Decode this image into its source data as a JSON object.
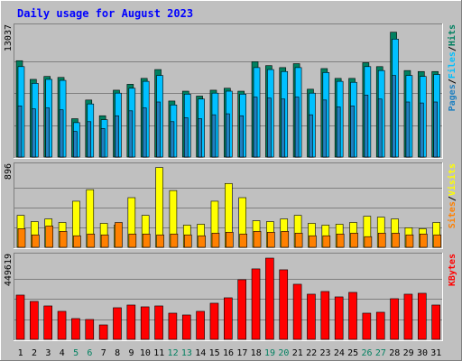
{
  "chart_data": {
    "type": "bar",
    "title": "Daily usage for August 2023",
    "days": [
      "1",
      "2",
      "3",
      "4",
      "5",
      "6",
      "7",
      "8",
      "9",
      "10",
      "11",
      "12",
      "13",
      "14",
      "15",
      "16",
      "17",
      "18",
      "19",
      "20",
      "21",
      "22",
      "23",
      "24",
      "25",
      "26",
      "27",
      "28",
      "29",
      "30",
      "31"
    ],
    "weekend_days": [
      "5",
      "6",
      "12",
      "13",
      "19",
      "20",
      "26",
      "27"
    ],
    "panels": [
      {
        "name": "hits-files-pages",
        "y_label_max": "13037",
        "ylim": [
          0,
          13037
        ],
        "legend": [
          "Pages",
          "/",
          "Files",
          "/",
          "Hits"
        ],
        "series": [
          {
            "name": "Hits",
            "color": "#008060",
            "values": [
              9800,
              7900,
              8200,
              8100,
              3900,
              5800,
              4200,
              6800,
              7400,
              8000,
              8900,
              5700,
              6700,
              6200,
              6800,
              7000,
              6700,
              9700,
              9300,
              9100,
              9500,
              6900,
              9000,
              8000,
              8000,
              9600,
              9200,
              12700,
              8800,
              8700,
              8700
            ]
          },
          {
            "name": "Files",
            "color": "#00c0ff",
            "values": [
              9200,
              7500,
              7900,
              7800,
              3500,
              5400,
              3800,
              6500,
              7000,
              7700,
              8300,
              5300,
              6400,
              5900,
              6500,
              6700,
              6400,
              9100,
              8900,
              8700,
              9100,
              6500,
              8600,
              7700,
              7600,
              9200,
              8800,
              12000,
              8300,
              8200,
              8400
            ]
          },
          {
            "name": "Pages",
            "color": "#2080c0",
            "values": [
              5200,
              4900,
              5000,
              4800,
              2600,
              3600,
              2900,
              4200,
              4700,
              5000,
              5600,
              3600,
              4000,
              3900,
              4300,
              4400,
              4200,
              6100,
              6000,
              5900,
              6100,
              4300,
              5800,
              5100,
              5200,
              6300,
              5900,
              8300,
              5600,
              5500,
              5600
            ]
          }
        ]
      },
      {
        "name": "visits-sites",
        "y_label_max": "896",
        "ylim": [
          0,
          896
        ],
        "legend": [
          "Sites",
          "/",
          "Visits"
        ],
        "series": [
          {
            "name": "Visits",
            "color": "#ffff00",
            "values": [
              360,
              290,
              320,
              280,
              520,
              650,
              270,
              250,
              560,
              360,
              900,
              640,
              250,
              260,
              520,
              720,
              560,
              300,
              290,
              320,
              360,
              270,
              250,
              260,
              280,
              350,
              340,
              320,
              220,
              210,
              280
            ]
          },
          {
            "name": "Sites",
            "color": "#ff8000",
            "values": [
              210,
              140,
              240,
              180,
              130,
              150,
              140,
              280,
              150,
              150,
              140,
              150,
              140,
              130,
              160,
              170,
              150,
              180,
              170,
              180,
              160,
              130,
              130,
              150,
              160,
              120,
              160,
              160,
              140,
              150,
              140
            ]
          }
        ]
      },
      {
        "name": "kbytes",
        "y_label_max": "449619",
        "ylim": [
          0,
          449619
        ],
        "legend": [
          "KBytes"
        ],
        "series": [
          {
            "name": "KBytes",
            "color": "#ff0000",
            "values": [
              245000,
              210000,
              185000,
              155000,
              115000,
              110000,
              80000,
              175000,
              190000,
              180000,
              185000,
              145000,
              135000,
              155000,
              200000,
              230000,
              330000,
              390000,
              449619,
              385000,
              305000,
              250000,
              265000,
              235000,
              260000,
              145000,
              150000,
              225000,
              250000,
              255000,
              190000
            ]
          }
        ]
      }
    ]
  }
}
